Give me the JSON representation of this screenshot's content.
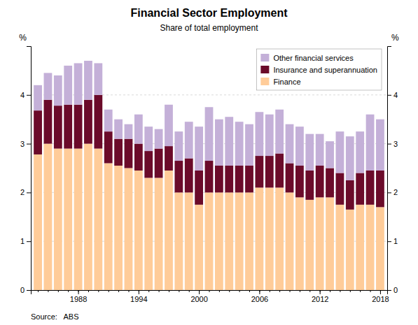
{
  "chart_data": {
    "type": "bar",
    "stacked": true,
    "title": "Financial Sector Employment",
    "subtitle": "Share of total employment",
    "annotations": [
      "Source:   ABS"
    ],
    "x": [
      1984,
      1985,
      1986,
      1987,
      1988,
      1989,
      1990,
      1991,
      1992,
      1993,
      1994,
      1995,
      1996,
      1997,
      1998,
      1999,
      2000,
      2001,
      2002,
      2003,
      2004,
      2005,
      2006,
      2007,
      2008,
      2009,
      2010,
      2011,
      2012,
      2013,
      2014,
      2015,
      2016,
      2017,
      2018
    ],
    "xlim": [
      1983.3,
      2018.7
    ],
    "xticks": [
      1988,
      1994,
      2000,
      2006,
      2012,
      2018
    ],
    "ylim": [
      0,
      5.0
    ],
    "yticks": [
      0,
      1,
      2,
      3,
      4
    ],
    "ylabel": "%",
    "y2lim": [
      0,
      5.0
    ],
    "y2ticks": [
      0,
      1,
      2,
      3,
      4
    ],
    "y2label": "%",
    "grid": true,
    "legend": "upper right",
    "series": [
      {
        "name": "Finance",
        "color": "#FFCC99",
        "values": [
          2.78,
          3.0,
          2.9,
          2.9,
          2.9,
          3.0,
          2.9,
          2.6,
          2.55,
          2.5,
          2.45,
          2.3,
          2.3,
          2.45,
          2.0,
          2.0,
          1.75,
          2.0,
          2.0,
          2.0,
          2.0,
          2.0,
          2.1,
          2.1,
          2.1,
          2.0,
          1.9,
          1.85,
          1.9,
          1.9,
          1.75,
          1.65,
          1.75,
          1.75,
          1.7
        ]
      },
      {
        "name": "Insurance and superannuation",
        "color": "#6B0B2A",
        "values": [
          0.9,
          0.9,
          0.88,
          0.9,
          0.9,
          0.9,
          1.1,
          0.65,
          0.55,
          0.6,
          0.55,
          0.55,
          0.6,
          0.5,
          0.65,
          0.7,
          0.7,
          0.65,
          0.55,
          0.55,
          0.55,
          0.55,
          0.65,
          0.65,
          0.7,
          0.6,
          0.65,
          0.6,
          0.65,
          0.6,
          0.65,
          0.6,
          0.65,
          0.7,
          0.75
        ]
      },
      {
        "name": "Other financial services",
        "color": "#C4B0D8",
        "values": [
          0.52,
          0.55,
          0.62,
          0.8,
          0.85,
          0.8,
          0.65,
          0.45,
          0.4,
          0.3,
          0.6,
          0.5,
          0.4,
          0.85,
          0.6,
          0.75,
          0.9,
          1.1,
          0.95,
          1.0,
          0.9,
          0.85,
          0.9,
          0.85,
          0.9,
          0.8,
          0.8,
          0.75,
          0.65,
          0.55,
          0.85,
          0.9,
          0.85,
          1.15,
          1.05
        ]
      }
    ]
  }
}
